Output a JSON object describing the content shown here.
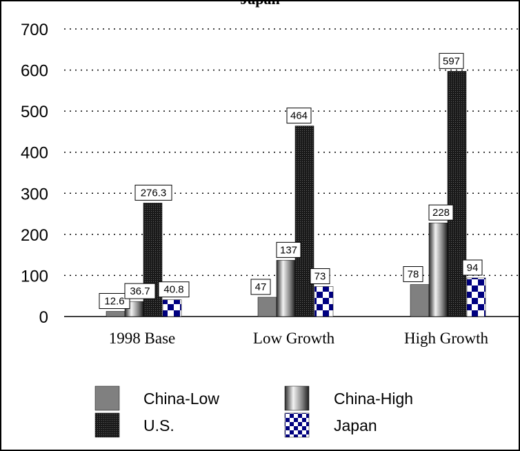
{
  "chart_data": {
    "type": "bar",
    "title": "Japan",
    "categories": [
      "1998 Base",
      "Low Growth",
      "High Growth"
    ],
    "series": [
      {
        "name": "China-Low",
        "values": [
          12.6,
          47,
          78
        ],
        "labels": [
          "12.6",
          "47",
          "78"
        ],
        "pattern": "gray"
      },
      {
        "name": "China-High",
        "values": [
          36.7,
          137,
          228
        ],
        "labels": [
          "36.7",
          "137",
          "228"
        ],
        "pattern": "gradient"
      },
      {
        "name": "U.S.",
        "values": [
          276.3,
          464,
          597
        ],
        "labels": [
          "276.3",
          "464",
          "597"
        ],
        "pattern": "dots"
      },
      {
        "name": "Japan",
        "values": [
          40.8,
          73,
          94
        ],
        "labels": [
          "40.8",
          "73",
          "94"
        ],
        "pattern": "checker"
      }
    ],
    "ylim": [
      0,
      700
    ],
    "yticks": [
      0,
      100,
      200,
      300,
      400,
      500,
      600,
      700
    ],
    "grid": true,
    "legend_position": "bottom",
    "colors": {
      "China-Low": "#808080",
      "China-High": "#9a9a9a",
      "U.S.": "#202020",
      "Japan": "#000080"
    }
  }
}
